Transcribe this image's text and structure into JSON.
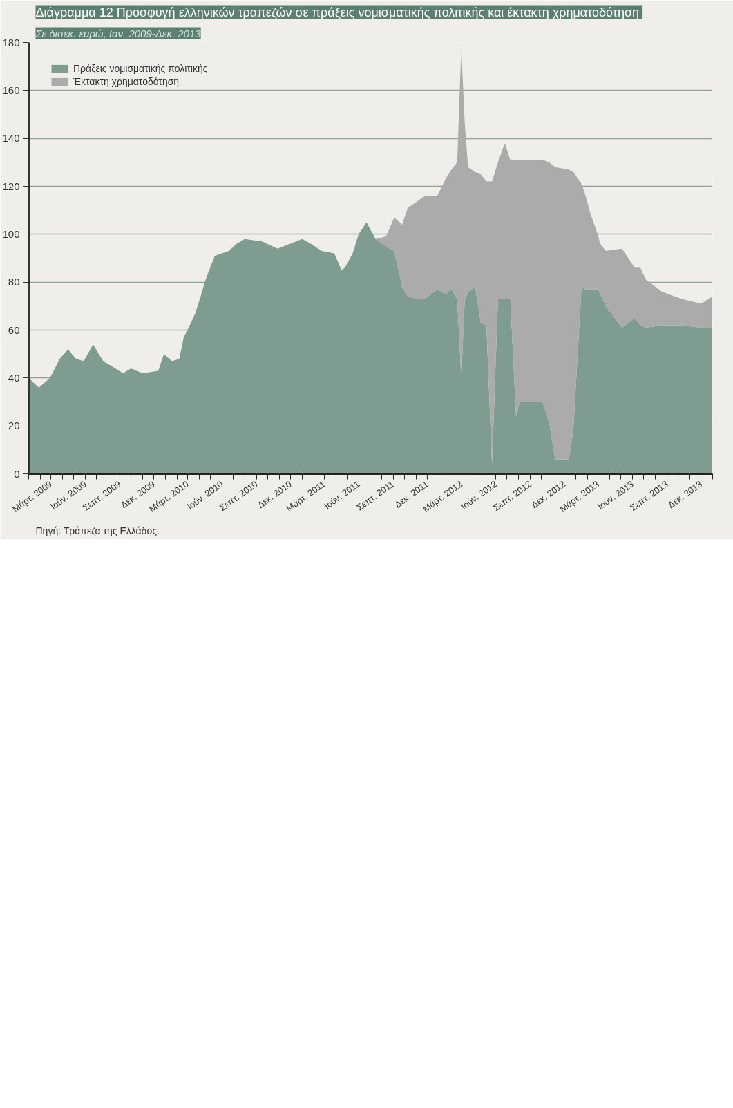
{
  "chart_data": {
    "type": "area",
    "stacked": true,
    "title": "Διάγραμμα 12  Προσφυγή ελληνικών τραπεζών σε πράξεις νομισματικής πολιτικής και έκτακτη χρηματοδότηση",
    "subtitle": "Σε δισεκ. ευρώ, Ιαν. 2009-Δεκ. 2013",
    "annotations": [
      "Πηγή: Τράπεζα της Ελλάδος."
    ],
    "x": [
      "2009-01-01",
      "2009-01-28",
      "2009-02-27",
      "2009-03-25",
      "2009-04-16",
      "2009-05-07",
      "2009-05-28",
      "2009-06-22",
      "2009-07-19",
      "2009-08-10",
      "2009-09-10",
      "2009-10-01",
      "2009-11-01",
      "2009-12-13",
      "2009-12-28",
      "2010-01-19",
      "2010-02-07",
      "2010-02-19",
      "2010-03-04",
      "2010-03-22",
      "2010-04-07",
      "2010-04-16",
      "2010-04-28",
      "2010-05-13",
      "2010-06-19",
      "2010-07-10",
      "2010-08-01",
      "2010-09-16",
      "2010-10-28",
      "2011-01-01",
      "2011-01-25",
      "2011-02-22",
      "2011-03-28",
      "2011-04-16",
      "2011-04-25",
      "2011-05-16",
      "2011-06-01",
      "2011-06-22",
      "2011-07-16",
      "2011-08-13",
      "2011-09-04",
      "2011-09-25",
      "2011-10-10",
      "2011-11-07",
      "2011-11-25",
      "2011-12-28",
      "2012-01-19",
      "2012-02-04",
      "2012-02-19",
      "2012-03-01",
      "2012-03-10",
      "2012-03-19",
      "2012-04-07",
      "2012-04-22",
      "2012-05-07",
      "2012-05-22",
      "2012-06-07",
      "2012-06-25",
      "2012-07-10",
      "2012-07-25",
      "2012-08-04",
      "2012-10-04",
      "2012-10-22",
      "2012-11-07",
      "2012-12-13",
      "2012-12-25",
      "2013-01-16",
      "2013-01-25",
      "2013-02-10",
      "2013-02-28",
      "2013-03-07",
      "2013-03-22",
      "2013-05-04",
      "2013-06-07",
      "2013-06-22",
      "2013-07-07",
      "2013-08-19",
      "2013-10-10",
      "2013-12-01",
      "2013-12-31"
    ],
    "series": [
      {
        "name": "Πράξεις νομισματικής πολιτικής",
        "color": "#7f9c91",
        "values": [
          40,
          36,
          40,
          48,
          52,
          48,
          47,
          54,
          47,
          45,
          42,
          44,
          42,
          43,
          50,
          47,
          48,
          57,
          61,
          67,
          75,
          80,
          85,
          91,
          93,
          96,
          98,
          97,
          94,
          98,
          96,
          93,
          92,
          85,
          86,
          92,
          100,
          105,
          98,
          95,
          93,
          78,
          74,
          73,
          73,
          77,
          75,
          77,
          73,
          40,
          72,
          76,
          78,
          63,
          62,
          4,
          73,
          73,
          73,
          24,
          30,
          30,
          21,
          6,
          6,
          18,
          78,
          77,
          77,
          77,
          75,
          70,
          61,
          65,
          62,
          61,
          62,
          62,
          61,
          61
        ]
      },
      {
        "name": "Έκτακτη χρηματοδότηση",
        "color": "#ababab",
        "values": [
          0,
          0,
          0,
          0,
          0,
          0,
          0,
          0,
          0,
          0,
          0,
          0,
          0,
          0,
          0,
          0,
          0,
          0,
          0,
          0,
          0,
          0,
          0,
          0,
          0,
          0,
          0,
          0,
          0,
          0,
          0,
          0,
          0,
          0,
          0,
          0,
          0,
          0,
          0,
          4,
          14,
          26,
          37,
          41,
          43,
          39,
          48,
          50,
          57,
          138,
          75,
          52,
          48,
          62,
          60,
          118,
          57,
          65,
          58,
          107,
          101,
          101,
          109,
          122,
          121,
          108,
          43,
          40,
          31,
          23,
          21,
          23,
          33,
          21,
          24,
          20,
          14,
          11,
          10,
          13
        ]
      }
    ],
    "ylim": [
      0,
      180
    ],
    "yticks": [
      0,
      20,
      40,
      60,
      80,
      100,
      120,
      140,
      160,
      180
    ],
    "xlim": [
      "2009-01-01",
      "2014-01-01"
    ],
    "xticks": [
      {
        "value": "2009-01-01",
        "label": null
      },
      {
        "value": "2009-02-01",
        "label": null
      },
      {
        "value": "2009-03-01",
        "label": "Μάρτ. 2009"
      },
      {
        "value": "2009-04-01",
        "label": null
      },
      {
        "value": "2009-05-01",
        "label": null
      },
      {
        "value": "2009-06-01",
        "label": "Ιούν. 2009"
      },
      {
        "value": "2009-07-01",
        "label": null
      },
      {
        "value": "2009-08-01",
        "label": null
      },
      {
        "value": "2009-09-01",
        "label": "Σεπτ. 2009"
      },
      {
        "value": "2009-10-01",
        "label": null
      },
      {
        "value": "2009-11-01",
        "label": null
      },
      {
        "value": "2009-12-01",
        "label": "Δεκ. 2009"
      },
      {
        "value": "2010-01-01",
        "label": null
      },
      {
        "value": "2010-02-01",
        "label": null
      },
      {
        "value": "2010-03-01",
        "label": "Μάρτ. 2010"
      },
      {
        "value": "2010-04-01",
        "label": null
      },
      {
        "value": "2010-05-01",
        "label": null
      },
      {
        "value": "2010-06-01",
        "label": "Ιούν. 2010"
      },
      {
        "value": "2010-07-01",
        "label": null
      },
      {
        "value": "2010-08-01",
        "label": null
      },
      {
        "value": "2010-09-01",
        "label": "Σεπτ. 2010"
      },
      {
        "value": "2010-10-01",
        "label": null
      },
      {
        "value": "2010-11-01",
        "label": null
      },
      {
        "value": "2010-12-01",
        "label": "Δεκ. 2010"
      },
      {
        "value": "2011-01-01",
        "label": null
      },
      {
        "value": "2011-02-01",
        "label": null
      },
      {
        "value": "2011-03-01",
        "label": "Μάρτ. 2011"
      },
      {
        "value": "2011-04-01",
        "label": null
      },
      {
        "value": "2011-05-01",
        "label": null
      },
      {
        "value": "2011-06-01",
        "label": "Ιούν. 2011"
      },
      {
        "value": "2011-07-01",
        "label": null
      },
      {
        "value": "2011-08-01",
        "label": null
      },
      {
        "value": "2011-09-01",
        "label": "Σεπτ. 2011"
      },
      {
        "value": "2011-10-01",
        "label": null
      },
      {
        "value": "2011-11-01",
        "label": null
      },
      {
        "value": "2011-12-01",
        "label": "Δεκ. 2011"
      },
      {
        "value": "2012-01-01",
        "label": null
      },
      {
        "value": "2012-02-01",
        "label": null
      },
      {
        "value": "2012-03-01",
        "label": "Μάρτ. 2012"
      },
      {
        "value": "2012-04-01",
        "label": null
      },
      {
        "value": "2012-05-01",
        "label": null
      },
      {
        "value": "2012-06-01",
        "label": "Ιούν. 2012"
      },
      {
        "value": "2012-07-01",
        "label": null
      },
      {
        "value": "2012-08-01",
        "label": null
      },
      {
        "value": "2012-09-01",
        "label": "Σεπτ. 2012"
      },
      {
        "value": "2012-10-01",
        "label": null
      },
      {
        "value": "2012-11-01",
        "label": null
      },
      {
        "value": "2012-12-01",
        "label": "Δεκ. 2012"
      },
      {
        "value": "2013-01-01",
        "label": null
      },
      {
        "value": "2013-02-01",
        "label": null
      },
      {
        "value": "2013-03-01",
        "label": "Μάρτ. 2013"
      },
      {
        "value": "2013-04-01",
        "label": null
      },
      {
        "value": "2013-05-01",
        "label": null
      },
      {
        "value": "2013-06-01",
        "label": "Ιούν. 2013"
      },
      {
        "value": "2013-07-01",
        "label": null
      },
      {
        "value": "2013-08-01",
        "label": null
      },
      {
        "value": "2013-09-01",
        "label": "Σεπτ. 2013"
      },
      {
        "value": "2013-10-01",
        "label": null
      },
      {
        "value": "2013-11-01",
        "label": null
      },
      {
        "value": "2013-12-01",
        "label": "Δεκ. 2013"
      },
      {
        "value": "2014-01-01",
        "label": null
      }
    ],
    "grid": "y",
    "legend": "top left"
  }
}
